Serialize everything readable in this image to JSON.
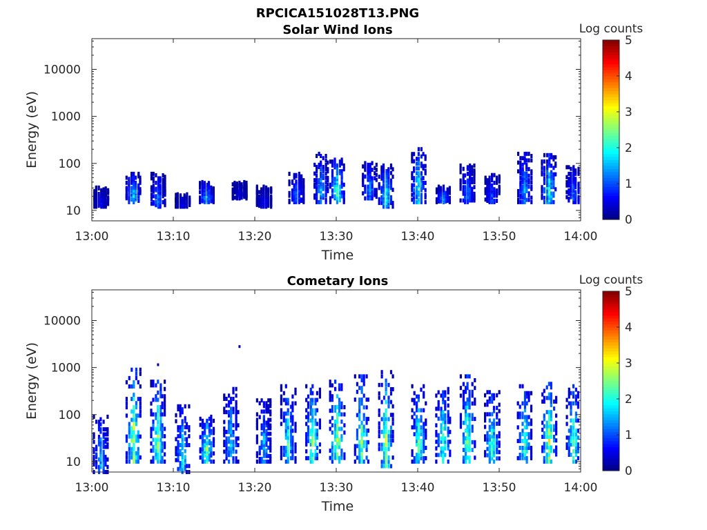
{
  "figure": {
    "title": "RPCICA151028T13.PNG"
  },
  "colorbar": {
    "label": "Log counts",
    "ticks": [
      0,
      1,
      2,
      3,
      4,
      5
    ],
    "range": [
      0,
      5
    ],
    "colormap": "jet"
  },
  "chart_data": [
    {
      "type": "heatmap",
      "title": "Solar Wind Ions",
      "xlabel": "Time",
      "ylabel": "Energy (eV)",
      "y_scale": "log",
      "ylim": [
        6,
        45000
      ],
      "xlim": [
        "13:00",
        "14:00"
      ],
      "x_ticks": [
        "13:00",
        "13:10",
        "13:20",
        "13:30",
        "13:40",
        "13:50",
        "14:00"
      ],
      "y_ticks": [
        "10",
        "100",
        "1000",
        "10000"
      ],
      "colorbar_label": "Log counts",
      "clim": [
        0,
        5
      ],
      "bursts": [
        {
          "t": "13:01",
          "e_min": 12,
          "e_max": 32,
          "peak_log": 0.6
        },
        {
          "t": "13:05",
          "e_min": 15,
          "e_max": 60,
          "peak_log": 1.8
        },
        {
          "t": "13:08",
          "e_min": 12,
          "e_max": 60,
          "peak_log": 1.2
        },
        {
          "t": "13:11",
          "e_min": 12,
          "e_max": 22,
          "peak_log": 0.6
        },
        {
          "t": "13:14",
          "e_min": 15,
          "e_max": 40,
          "peak_log": 1.6
        },
        {
          "t": "13:18",
          "e_min": 18,
          "e_max": 40,
          "peak_log": 0.5
        },
        {
          "t": "13:21",
          "e_min": 12,
          "e_max": 32,
          "peak_log": 0.6
        },
        {
          "t": "13:25",
          "e_min": 15,
          "e_max": 60,
          "peak_log": 1.2
        },
        {
          "t": "13:28",
          "e_min": 15,
          "e_max": 160,
          "peak_log": 1.5
        },
        {
          "t": "13:30",
          "e_min": 15,
          "e_max": 120,
          "peak_log": 2.2
        },
        {
          "t": "13:34",
          "e_min": 18,
          "e_max": 110,
          "peak_log": 1.4
        },
        {
          "t": "13:36",
          "e_min": 12,
          "e_max": 90,
          "peak_log": 1.9
        },
        {
          "t": "13:40",
          "e_min": 15,
          "e_max": 200,
          "peak_log": 2.0
        },
        {
          "t": "13:43",
          "e_min": 15,
          "e_max": 32,
          "peak_log": 1.4
        },
        {
          "t": "13:46",
          "e_min": 15,
          "e_max": 90,
          "peak_log": 1.3
        },
        {
          "t": "13:49",
          "e_min": 15,
          "e_max": 60,
          "peak_log": 1.0
        },
        {
          "t": "13:53",
          "e_min": 15,
          "e_max": 160,
          "peak_log": 1.5
        },
        {
          "t": "13:56",
          "e_min": 15,
          "e_max": 150,
          "peak_log": 2.1
        },
        {
          "t": "13:59",
          "e_min": 15,
          "e_max": 90,
          "peak_log": 1.1
        }
      ]
    },
    {
      "type": "heatmap",
      "title": "Cometary Ions",
      "xlabel": "Time",
      "ylabel": "Energy (eV)",
      "y_scale": "log",
      "ylim": [
        6,
        45000
      ],
      "xlim": [
        "13:00",
        "14:00"
      ],
      "x_ticks": [
        "13:00",
        "13:10",
        "13:20",
        "13:30",
        "13:40",
        "13:50",
        "14:00"
      ],
      "y_ticks": [
        "10",
        "100",
        "1000",
        "10000"
      ],
      "colorbar_label": "Log counts",
      "clim": [
        0,
        5
      ],
      "bursts": [
        {
          "t": "13:01",
          "e_min": 6,
          "e_max": 90,
          "peak_log": 1.6
        },
        {
          "t": "13:05",
          "e_min": 10,
          "e_max": 900,
          "peak_log": 2.9
        },
        {
          "t": "13:08",
          "e_min": 10,
          "e_max": 500,
          "peak_log": 2.6
        },
        {
          "t": "13:11",
          "e_min": 6,
          "e_max": 150,
          "peak_log": 1.9
        },
        {
          "t": "13:14",
          "e_min": 10,
          "e_max": 90,
          "peak_log": 2.6
        },
        {
          "t": "13:17",
          "e_min": 10,
          "e_max": 350,
          "peak_log": 1.7
        },
        {
          "t": "13:21",
          "e_min": 10,
          "e_max": 200,
          "peak_log": 1.6
        },
        {
          "t": "13:24",
          "e_min": 10,
          "e_max": 400,
          "peak_log": 2.1
        },
        {
          "t": "13:27",
          "e_min": 10,
          "e_max": 400,
          "peak_log": 2.6
        },
        {
          "t": "13:30",
          "e_min": 10,
          "e_max": 500,
          "peak_log": 2.9
        },
        {
          "t": "13:33",
          "e_min": 10,
          "e_max": 650,
          "peak_log": 2.5
        },
        {
          "t": "13:36",
          "e_min": 8,
          "e_max": 800,
          "peak_log": 2.6
        },
        {
          "t": "13:40",
          "e_min": 10,
          "e_max": 400,
          "peak_log": 2.3
        },
        {
          "t": "13:43",
          "e_min": 10,
          "e_max": 350,
          "peak_log": 2.4
        },
        {
          "t": "13:46",
          "e_min": 10,
          "e_max": 650,
          "peak_log": 2.6
        },
        {
          "t": "13:49",
          "e_min": 10,
          "e_max": 300,
          "peak_log": 2.3
        },
        {
          "t": "13:53",
          "e_min": 10,
          "e_max": 400,
          "peak_log": 2.3
        },
        {
          "t": "13:56",
          "e_min": 10,
          "e_max": 450,
          "peak_log": 2.9
        },
        {
          "t": "13:59",
          "e_min": 10,
          "e_max": 400,
          "peak_log": 2.4
        }
      ],
      "outliers": [
        {
          "t": "13:08",
          "e": 1150
        },
        {
          "t": "13:18",
          "e": 2800
        }
      ]
    }
  ]
}
